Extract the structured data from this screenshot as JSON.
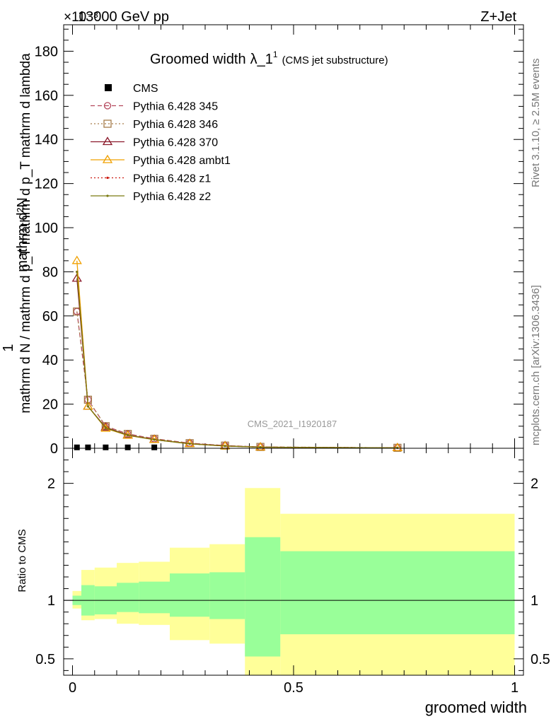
{
  "header": {
    "energy": "13000 GeV pp",
    "process": "Z+Jet",
    "exponent_label": "×10⁻³"
  },
  "side_labels": {
    "rivet": "Rivet 3.1.10, ≥ 2.5M events",
    "mcplots": "mcplots.cern.ch [arXiv:1306.3436]"
  },
  "watermark": "CMS_2021_I1920187",
  "chart_data": [
    {
      "type": "line",
      "title_main": "Groomed width",
      "title_symbol": "λ_1",
      "title_sup": "1",
      "title_sub": "(CMS jet substructure)",
      "ylabel_top": "1",
      "ylabel_num": "mathrm d²N",
      "ylabel_den": "mathrm d N / mathrm d p_T mathrm d p_T mathrm d lambda",
      "xlim": [
        -0.02,
        1.02
      ],
      "ylim": [
        0,
        192
      ],
      "yticks": [
        0,
        20,
        40,
        60,
        80,
        100,
        120,
        140,
        160,
        180
      ],
      "legend_position": "top-left",
      "x": [
        0.01,
        0.035,
        0.075,
        0.125,
        0.185,
        0.265,
        0.345,
        0.425,
        0.735
      ],
      "series": [
        {
          "name": "CMS",
          "color": "#000000",
          "style": "data",
          "values": [
            0.4,
            0.4,
            0.4,
            0.4,
            0.4,
            null,
            null,
            null,
            null
          ]
        },
        {
          "name": "Pythia 6.428 345",
          "color": "#b5485d",
          "style": "dashed",
          "marker": "circle",
          "values": [
            62,
            22,
            10,
            6.5,
            4.3,
            2.3,
            1.2,
            0.6,
            0.2
          ]
        },
        {
          "name": "Pythia 6.428 346",
          "color": "#a67c4a",
          "style": "dotted",
          "marker": "square",
          "values": [
            62,
            22,
            10,
            6.5,
            4.3,
            2.3,
            1.2,
            0.6,
            0.2
          ]
        },
        {
          "name": "Pythia 6.428 370",
          "color": "#8b1a2b",
          "style": "solid",
          "marker": "triangle",
          "values": [
            77,
            19,
            9.5,
            6.0,
            4.0,
            2.1,
            1.1,
            0.5,
            0.2
          ]
        },
        {
          "name": "Pythia 6.428 ambt1",
          "color": "#f0a000",
          "style": "solid",
          "marker": "triangle",
          "values": [
            85,
            19,
            9,
            5.8,
            3.9,
            2.0,
            1.0,
            0.5,
            0.2
          ]
        },
        {
          "name": "Pythia 6.428 z1",
          "color": "#cc1a10",
          "style": "dotted",
          "marker": "dot",
          "values": [
            80,
            19,
            9.2,
            5.9,
            3.9,
            2.0,
            1.0,
            0.5,
            0.2
          ]
        },
        {
          "name": "Pythia 6.428 z2",
          "color": "#7a7a10",
          "style": "solid",
          "marker": "dot",
          "values": [
            80,
            19,
            9.2,
            5.9,
            3.9,
            2.0,
            1.0,
            0.5,
            0.2
          ]
        }
      ]
    },
    {
      "type": "area",
      "ylabel": "Ratio to CMS",
      "xlabel": "groomed width",
      "xlim": [
        -0.02,
        1.02
      ],
      "ylim": [
        0.36,
        2.3
      ],
      "yticks": [
        0.5,
        1,
        2
      ],
      "xticks": [
        0,
        0.5,
        1
      ],
      "tick_labels_y": [
        "0.5",
        "1",
        "2"
      ],
      "tick_labels_x": [
        "0",
        "0.5",
        "1"
      ],
      "bin_edges": [
        0,
        0.02,
        0.05,
        0.1,
        0.15,
        0.22,
        0.31,
        0.39,
        0.47,
        1.0
      ],
      "band_inner": {
        "color": "#99ff99",
        "lo": [
          0.96,
          0.87,
          0.88,
          0.9,
          0.89,
          0.86,
          0.84,
          0.52,
          0.71
        ],
        "hi": [
          1.04,
          1.13,
          1.12,
          1.15,
          1.16,
          1.23,
          1.24,
          1.54,
          1.42
        ]
      },
      "band_outer": {
        "color": "#ffff99",
        "lo": [
          0.93,
          0.83,
          0.84,
          0.8,
          0.79,
          0.66,
          0.63,
          0.36,
          0.36
        ],
        "hi": [
          1.08,
          1.26,
          1.28,
          1.32,
          1.33,
          1.45,
          1.48,
          1.96,
          1.74
        ]
      },
      "reference_line": 1
    }
  ]
}
